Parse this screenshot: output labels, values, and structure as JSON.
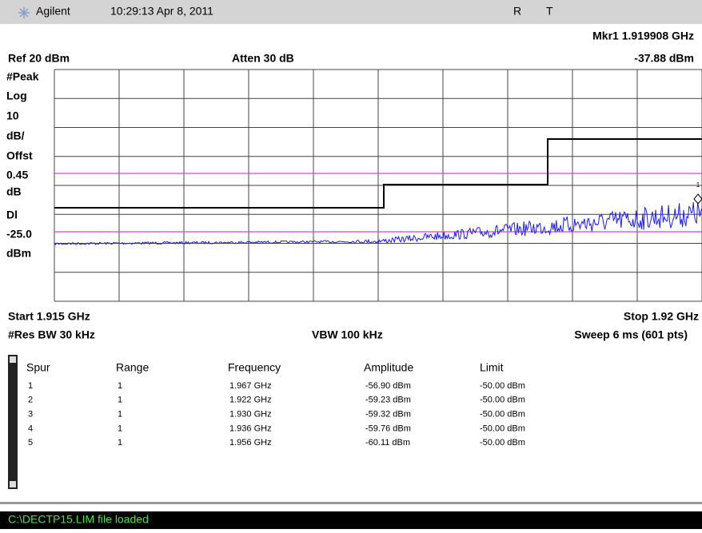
{
  "header": {
    "brand": "Agilent",
    "time": "10:29:13  Apr 8, 2011",
    "r": "R",
    "t": "T"
  },
  "annotations": {
    "marker": "Mkr1  1.919908 GHz",
    "ref": "Ref 20 dBm",
    "atten": "Atten 30 dB",
    "marker_amplitude": "-37.88 dBm",
    "left": [
      "#Peak",
      "Log",
      "10",
      "dB/",
      "Offst",
      "0.45",
      "dB",
      "Dl",
      "-25.0",
      "dBm"
    ],
    "start": "Start 1.915 GHz",
    "stop": "Stop 1.92 GHz",
    "res_bw": "#Res BW 30 kHz",
    "vbw": "VBW 100 kHz",
    "sweep": "Sweep 6 ms (601 pts)",
    "marker_number": "1"
  },
  "table": {
    "columns": [
      "Spur",
      "Range",
      "Frequency",
      "Amplitude",
      "Limit"
    ],
    "rows": [
      [
        "1",
        "1",
        "1.967 GHz",
        "-56.90 dBm",
        "-50.00 dBm"
      ],
      [
        "2",
        "1",
        "1.922 GHz",
        "-59.23 dBm",
        "-50.00 dBm"
      ],
      [
        "3",
        "1",
        "1.930 GHz",
        "-59.32 dBm",
        "-50.00 dBm"
      ],
      [
        "4",
        "1",
        "1.936 GHz",
        "-59.76 dBm",
        "-50.00 dBm"
      ],
      [
        "5",
        "1",
        "1.956 GHz",
        "-60.11 dBm",
        "-50.00 dBm"
      ]
    ]
  },
  "status": "C:\\DECTP15.LIM file loaded"
}
